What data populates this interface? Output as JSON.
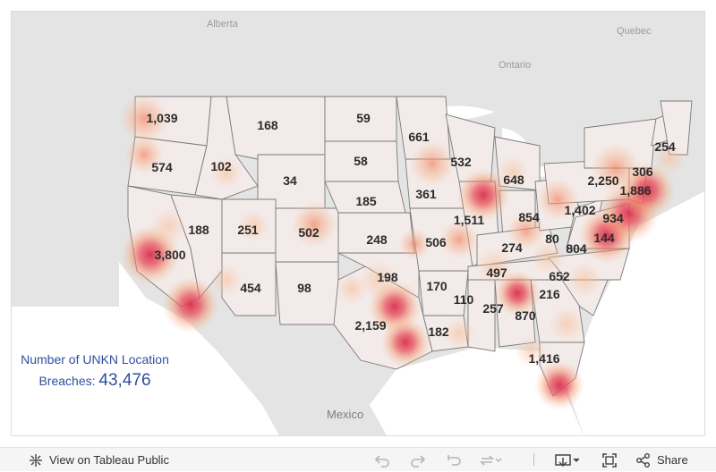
{
  "map": {
    "place_labels": {
      "alberta": "Alberta",
      "quebec": "Quebec",
      "ontario": "Ontario",
      "mexico": "Mexico"
    },
    "heat_colors": {
      "low": "#f7c4a0",
      "mid": "#ef7b5c",
      "high": "#d72f4f"
    },
    "state_values": {
      "wa": "1,039",
      "or": "574",
      "ca": "3,800",
      "id": "102",
      "nv": "188",
      "mt": "168",
      "wy": "34",
      "ut": "251",
      "az": "454",
      "co": "502",
      "nm": "98",
      "nd": "59",
      "sd": "58",
      "ne": "185",
      "ks": "248",
      "ok": "198",
      "tx": "2,159",
      "mn": "661",
      "ia": "361",
      "mo": "506",
      "ar": "170",
      "la": "182",
      "wi": "532",
      "il": "1,511",
      "ms": "110",
      "mi": "648",
      "in": "854",
      "ky": "274",
      "tn": "497",
      "al": "257",
      "oh": "1,402",
      "wv": "80",
      "ga": "870",
      "fl": "1,416",
      "sc": "216",
      "nc": "652",
      "va": "804",
      "pa": "2,250",
      "ny": "1,886",
      "nj": "934",
      "md": "144",
      "ma": "306",
      "me": "254"
    }
  },
  "summary": {
    "line1": "Number of UNKN Location",
    "line2_prefix": "Breaches:",
    "total": "43,476"
  },
  "toolbar": {
    "view_label": "View on Tableau Public",
    "share_label": "Share"
  }
}
